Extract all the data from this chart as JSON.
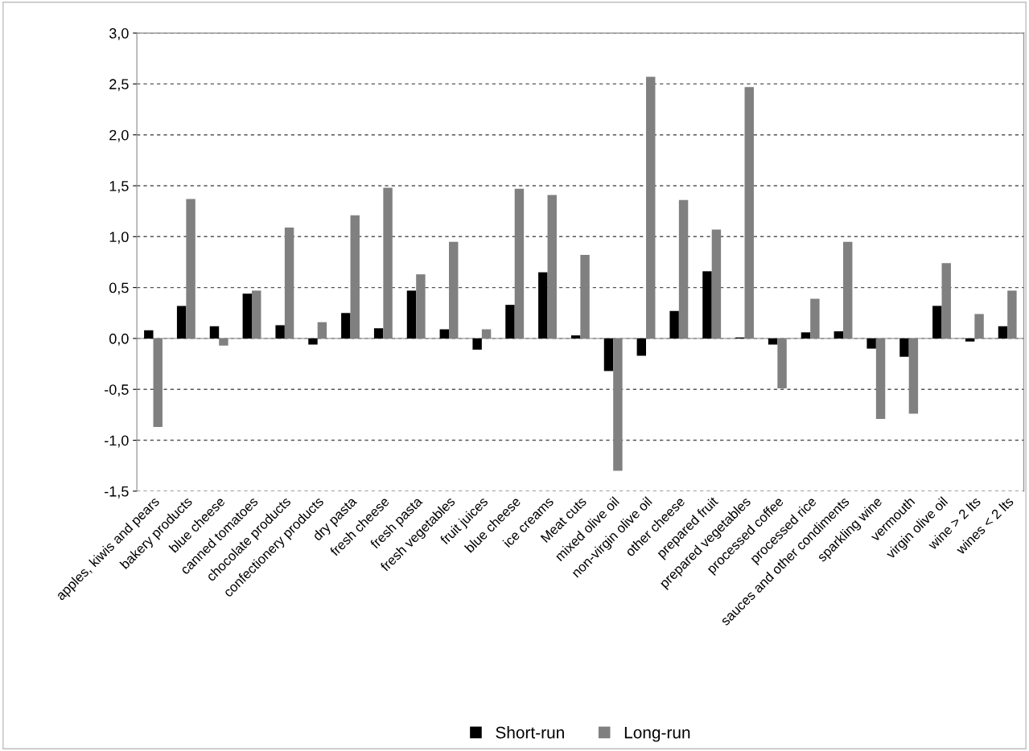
{
  "chart_data": {
    "type": "bar",
    "categories": [
      "apples, kiwis and pears",
      "bakery products",
      "blue cheese",
      "canned tomatoes",
      "chocolate products",
      "confectionery products",
      "dry pasta",
      "fresh cheese",
      "fresh pasta",
      "fresh vegetables",
      "fruit juices",
      "blue cheese",
      "ice creams",
      "Meat cuts",
      "mixed olive oil",
      "non-virgin olive oil",
      "other cheese",
      "prepared fruit",
      "prepared vegetables",
      "processed coffee",
      "processed rice",
      "sauces and other condiments",
      "sparkling wine",
      "vermouth",
      "virgin olive oil",
      "wine > 2 lts",
      "wines < 2 lts"
    ],
    "series": [
      {
        "name": "Short-run",
        "color": "#000000",
        "values": [
          0.08,
          0.32,
          0.12,
          0.44,
          0.13,
          -0.06,
          0.25,
          0.1,
          0.47,
          0.09,
          -0.11,
          0.33,
          0.65,
          0.03,
          -0.32,
          -0.17,
          0.27,
          0.66,
          0.01,
          -0.06,
          0.06,
          0.07,
          -0.1,
          -0.18,
          0.32,
          -0.03,
          0.12
        ]
      },
      {
        "name": "Long-run",
        "color": "#808080",
        "values": [
          -0.87,
          1.37,
          -0.07,
          0.47,
          1.09,
          0.16,
          1.21,
          1.48,
          0.63,
          0.95,
          0.09,
          1.47,
          1.41,
          0.82,
          -1.3,
          2.57,
          1.36,
          1.07,
          2.47,
          -0.49,
          0.39,
          0.95,
          -0.79,
          -0.74,
          0.74,
          0.24,
          0.47
        ]
      }
    ],
    "ylim": [
      -1.5,
      3.0
    ],
    "yticks": [
      {
        "value": -1.5,
        "label": "-1,5"
      },
      {
        "value": -1.0,
        "label": "-1,0"
      },
      {
        "value": -0.5,
        "label": "-0,5"
      },
      {
        "value": 0,
        "label": "0,0"
      },
      {
        "value": 0.5,
        "label": "0,5"
      },
      {
        "value": 1.0,
        "label": "1,0"
      },
      {
        "value": 1.5,
        "label": "1,5"
      },
      {
        "value": 2.0,
        "label": "2,0"
      },
      {
        "value": 2.5,
        "label": "2,5"
      },
      {
        "value": 3.0,
        "label": "3,0"
      }
    ],
    "grid": "y",
    "legend": "bottom"
  }
}
